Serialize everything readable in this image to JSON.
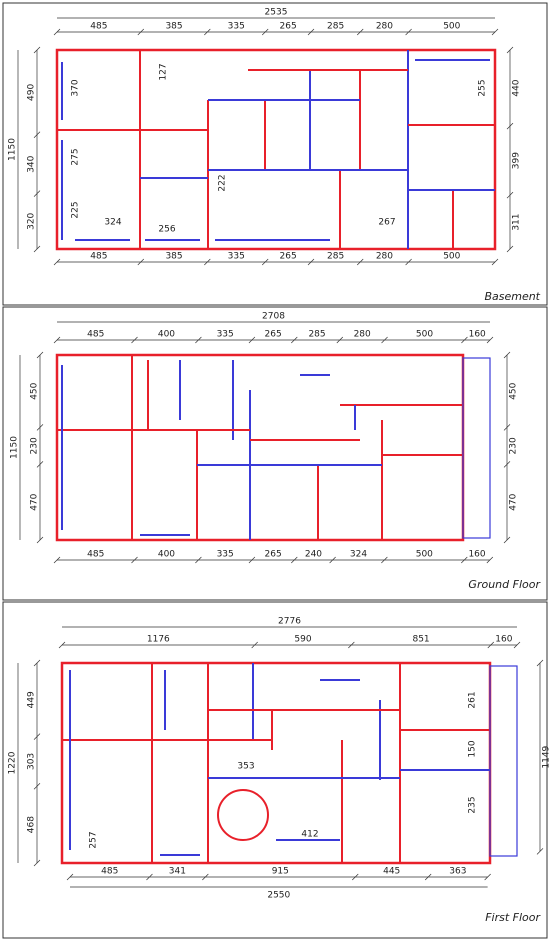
{
  "panels": [
    {
      "label": "Basement",
      "top_total": 2535,
      "top": [
        485,
        385,
        335,
        265,
        285,
        280,
        500
      ],
      "bottom": [
        485,
        385,
        335,
        265,
        285,
        280,
        500
      ],
      "left_total": 1150,
      "left": [
        490,
        340,
        320
      ],
      "right": [
        440,
        399,
        311
      ],
      "notes": [
        370,
        127,
        255,
        275,
        222,
        225,
        324,
        256,
        267
      ]
    },
    {
      "label": "Ground Floor",
      "top_total": 2708,
      "top": [
        485,
        400,
        335,
        265,
        285,
        280,
        500,
        160
      ],
      "bottom": [
        485,
        400,
        335,
        265,
        240,
        324,
        500,
        160
      ],
      "left_total": 1150,
      "left": [
        450,
        230,
        470
      ],
      "right": [
        450,
        230,
        470
      ]
    },
    {
      "label": "First Floor",
      "top_total": 2776,
      "top": [
        1176,
        590,
        851,
        160
      ],
      "bottom": [
        485,
        341,
        915,
        445,
        363
      ],
      "bottom_total": 2550,
      "left_total": 1220,
      "left": [
        449,
        303,
        468
      ],
      "right": [
        1149
      ],
      "notes": [
        261,
        150,
        235,
        353,
        257,
        412
      ]
    }
  ]
}
